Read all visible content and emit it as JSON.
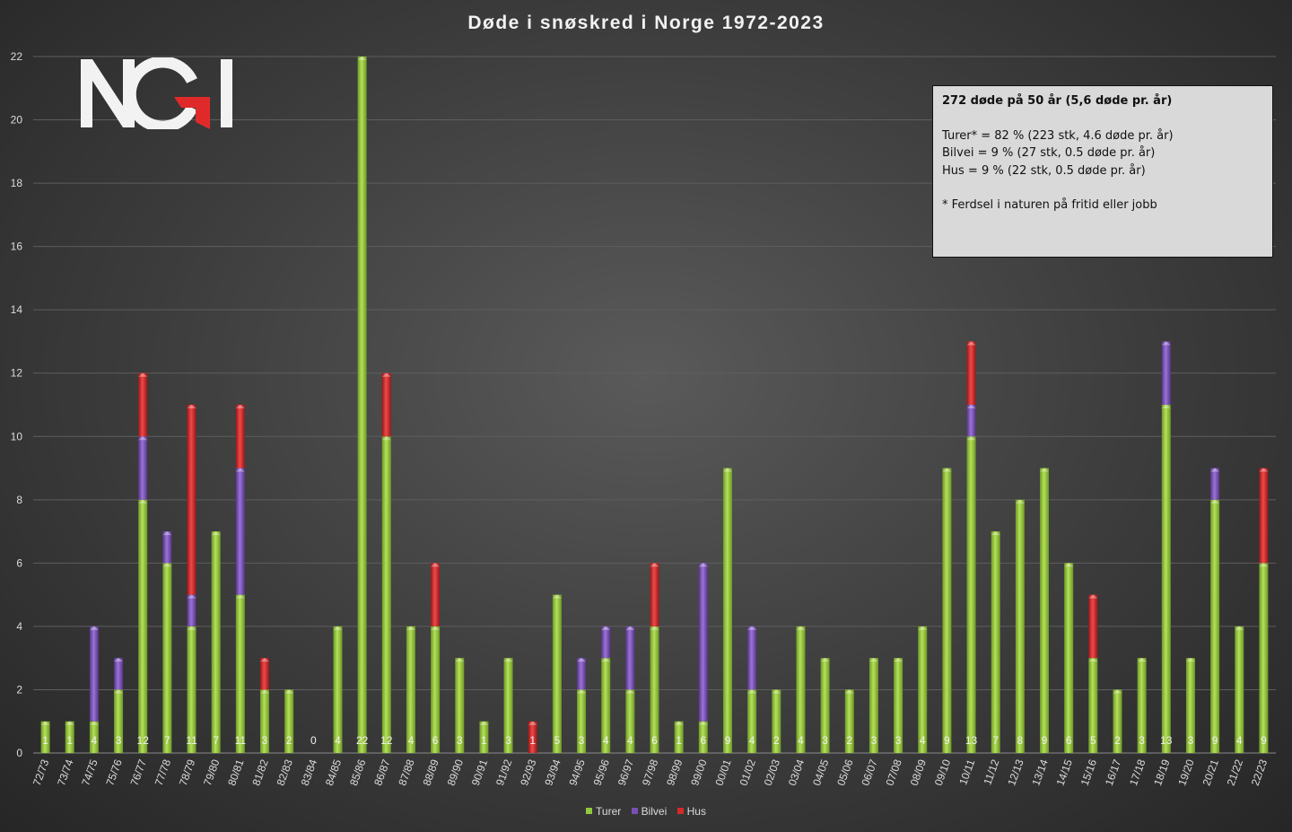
{
  "title": "Døde i snøskred i Norge 1972-2023",
  "logo_text": "NGI",
  "info_box": {
    "header": "272 døde på 50 år (5,6 døde pr. år)",
    "lines": [
      "Turer* = 82 % (223 stk, 4.6 døde pr. år)",
      "Bilvei = 9 % (27 stk, 0.5 døde pr. år)",
      "Hus = 9 % (22 stk, 0.5 døde pr. år)"
    ],
    "footnote": "* Ferdsel i naturen på fritid eller jobb"
  },
  "colors": {
    "turer": "#92c83e",
    "bilvei": "#7a4fb5",
    "hus": "#d42a2a",
    "background": "#3c3c3c",
    "text": "#dcdcdc"
  },
  "chart_data": {
    "type": "bar",
    "stacked": true,
    "title": "Døde i snøskred i Norge 1972-2023",
    "xlabel": "",
    "ylabel": "",
    "ylim": [
      0,
      22
    ],
    "yticks": [
      0,
      2,
      4,
      6,
      8,
      10,
      12,
      14,
      16,
      18,
      20,
      22
    ],
    "grid": true,
    "legend_position": "bottom",
    "categories": [
      "72/73",
      "73/74",
      "74/75",
      "75/76",
      "76/77",
      "77/78",
      "78/79",
      "79/80",
      "80/81",
      "81/82",
      "82/83",
      "83/84",
      "84/85",
      "85/86",
      "86/87",
      "87/88",
      "88/89",
      "89/90",
      "90/91",
      "91/92",
      "92/93",
      "93/94",
      "94/95",
      "95/96",
      "96/97",
      "97/98",
      "98/99",
      "99/00",
      "00/01",
      "01/02",
      "02/03",
      "03/04",
      "04/05",
      "05/06",
      "06/07",
      "07/08",
      "08/09",
      "09/10",
      "10/11",
      "11/12",
      "12/13",
      "13/14",
      "14/15",
      "15/16",
      "16/17",
      "17/18",
      "18/19",
      "19/20",
      "20/21",
      "21/22",
      "22/23"
    ],
    "series": [
      {
        "name": "Turer",
        "values": [
          1,
          1,
          1,
          2,
          8,
          6,
          4,
          7,
          5,
          2,
          2,
          0,
          4,
          22,
          10,
          4,
          4,
          3,
          1,
          3,
          0,
          5,
          2,
          3,
          2,
          4,
          1,
          1,
          9,
          2,
          2,
          4,
          3,
          2,
          3,
          3,
          4,
          9,
          10,
          7,
          8,
          9,
          6,
          3,
          2,
          3,
          11,
          3,
          8,
          4,
          6
        ]
      },
      {
        "name": "Bilvei",
        "values": [
          0,
          0,
          3,
          1,
          2,
          1,
          1,
          0,
          4,
          0,
          0,
          0,
          0,
          0,
          0,
          0,
          0,
          0,
          0,
          0,
          0,
          0,
          1,
          1,
          2,
          0,
          0,
          5,
          0,
          2,
          0,
          0,
          0,
          0,
          0,
          0,
          0,
          0,
          1,
          0,
          0,
          0,
          0,
          0,
          0,
          0,
          2,
          0,
          1,
          0,
          0
        ]
      },
      {
        "name": "Hus",
        "values": [
          0,
          0,
          0,
          0,
          2,
          0,
          6,
          0,
          2,
          1,
          0,
          0,
          0,
          0,
          2,
          0,
          2,
          0,
          0,
          0,
          1,
          0,
          0,
          0,
          0,
          2,
          0,
          0,
          0,
          0,
          0,
          0,
          0,
          0,
          0,
          0,
          0,
          0,
          2,
          0,
          0,
          0,
          0,
          2,
          0,
          0,
          0,
          0,
          0,
          0,
          3
        ]
      }
    ],
    "totals": [
      1,
      1,
      4,
      3,
      12,
      7,
      11,
      7,
      11,
      3,
      2,
      0,
      4,
      22,
      12,
      4,
      6,
      3,
      1,
      3,
      1,
      5,
      3,
      4,
      4,
      6,
      1,
      6,
      9,
      4,
      2,
      4,
      3,
      2,
      3,
      3,
      4,
      9,
      13,
      7,
      8,
      9,
      6,
      5,
      2,
      3,
      13,
      3,
      9,
      4,
      9
    ]
  }
}
